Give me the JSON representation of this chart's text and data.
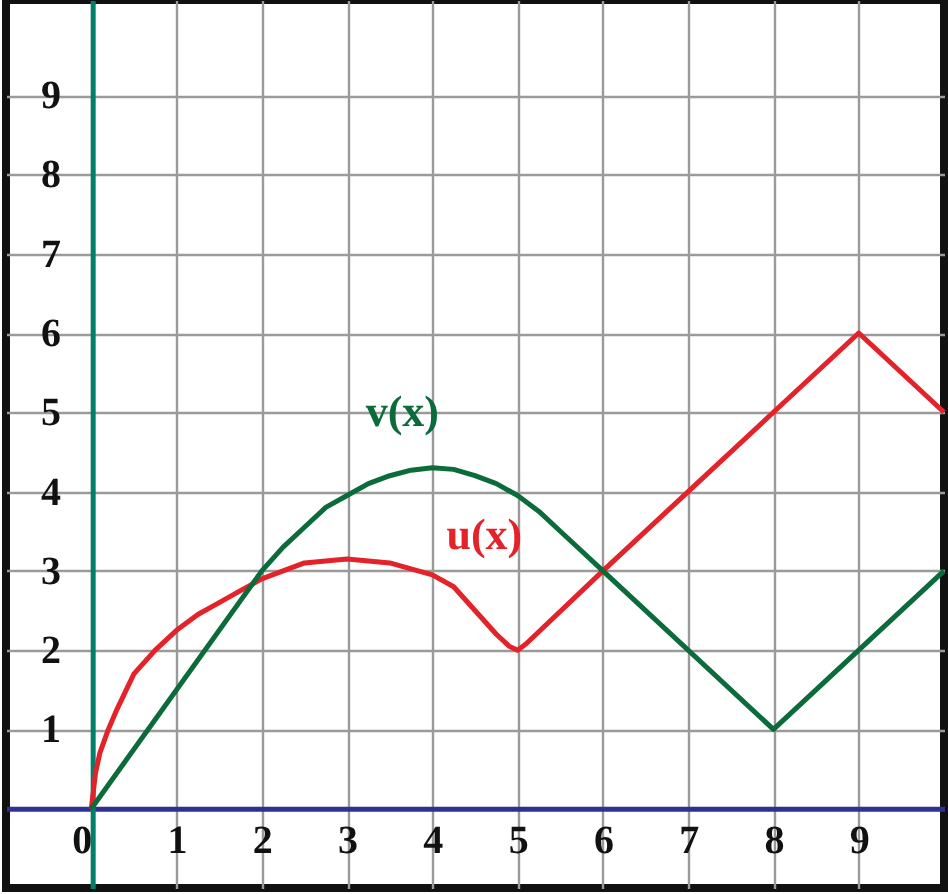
{
  "chart_data": {
    "type": "line",
    "xlim": [
      -1,
      10
    ],
    "ylim": [
      -1,
      10.2
    ],
    "xticks": [
      0,
      1,
      2,
      3,
      4,
      5,
      6,
      7,
      8,
      9
    ],
    "yticks": [
      1,
      2,
      3,
      4,
      5,
      6,
      7,
      8,
      9
    ],
    "grid": true,
    "line_style": "solid",
    "marker": "none",
    "series": [
      {
        "name": "u(x)",
        "color": "#e32229",
        "x": [
          0,
          0.05,
          0.1,
          0.2,
          0.3,
          0.5,
          0.75,
          1,
          1.25,
          1.5,
          1.75,
          2,
          2.5,
          3,
          3.5,
          4,
          4.25,
          4.5,
          4.75,
          4.9,
          5,
          5.1,
          6,
          7,
          8,
          9,
          10
        ],
        "values": [
          0,
          0.45,
          0.7,
          1.0,
          1.25,
          1.7,
          2.0,
          2.25,
          2.45,
          2.6,
          2.75,
          2.9,
          3.1,
          3.15,
          3.1,
          2.95,
          2.8,
          2.5,
          2.2,
          2.05,
          2.0,
          2.08,
          3,
          4,
          5,
          6,
          5
        ]
      },
      {
        "name": "v(x)",
        "color": "#0b6b3a",
        "x": [
          0,
          2,
          2.25,
          2.5,
          2.75,
          3,
          3.25,
          3.5,
          3.75,
          4,
          4.25,
          4.5,
          4.75,
          5,
          5.25,
          5.5,
          5.75,
          6,
          8,
          10
        ],
        "values": [
          0,
          3,
          3.3,
          3.55,
          3.8,
          3.95,
          4.1,
          4.2,
          4.27,
          4.3,
          4.28,
          4.2,
          4.1,
          3.95,
          3.75,
          3.5,
          3.25,
          3,
          1,
          3
        ]
      }
    ]
  }
}
